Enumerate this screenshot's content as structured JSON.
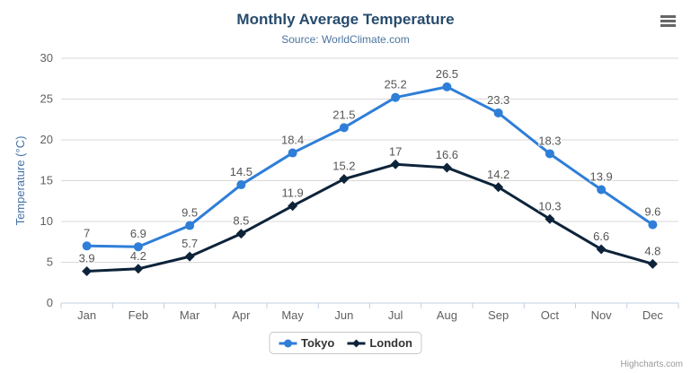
{
  "chart": {
    "title": "Monthly Average Temperature",
    "subtitle": "Source: WorldClimate.com",
    "credits": "Highcharts.com",
    "menu_icon": "hamburger-menu-icon",
    "colors": {
      "title": "#274b6d",
      "subtitle": "#4d759e",
      "axis_title": "#4572a7",
      "axis_labels": "#606060",
      "grid_line": "#d8d8d8",
      "axis_line": "#c0d0e0",
      "data_label": "#555555",
      "legend_text": "#333333",
      "legend_border": "#c8c8c8",
      "credits": "#999999",
      "menu_icon_color": "#666666",
      "background": "#ffffff"
    }
  },
  "chart_data": {
    "type": "line",
    "title": "Monthly Average Temperature",
    "subtitle": "Source: WorldClimate.com",
    "categories": [
      "Jan",
      "Feb",
      "Mar",
      "Apr",
      "May",
      "Jun",
      "Jul",
      "Aug",
      "Sep",
      "Oct",
      "Nov",
      "Dec"
    ],
    "series": [
      {
        "name": "Tokyo",
        "color": "#2f7ed8",
        "marker": "circle",
        "values": [
          7,
          6.9,
          9.5,
          14.5,
          18.4,
          21.5,
          25.2,
          26.5,
          23.3,
          18.3,
          13.9,
          9.6
        ],
        "labels": [
          "7",
          "6.9",
          "9.5",
          "14.5",
          "18.4",
          "21.5",
          "25.2",
          "26.5",
          "23.3",
          "18.3",
          "13.9",
          "9.6"
        ]
      },
      {
        "name": "London",
        "color": "#0d233a",
        "marker": "diamond",
        "values": [
          3.9,
          4.2,
          5.7,
          8.5,
          11.9,
          15.2,
          17,
          16.6,
          14.2,
          10.3,
          6.6,
          4.8
        ],
        "labels": [
          "3.9",
          "4.2",
          "5.7",
          "8.5",
          "11.9",
          "15.2",
          "17",
          "16.6",
          "14.2",
          "10.3",
          "6.6",
          "4.8"
        ]
      }
    ],
    "xlabel": "",
    "ylabel": "Temperature (°C)",
    "ylim": [
      0,
      30
    ],
    "ytick_interval": 5,
    "yticks": [
      0,
      5,
      10,
      15,
      20,
      25,
      30
    ],
    "grid": true,
    "legend_position": "bottom"
  }
}
